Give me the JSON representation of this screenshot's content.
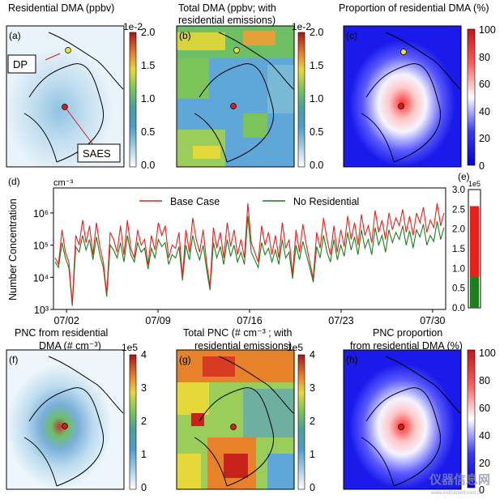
{
  "panels": {
    "a": {
      "letter": "(a)",
      "title": "Residential DMA (ppbv)",
      "cb_exp": "1e-2",
      "cb_ticks": [
        "2.0",
        "1.5",
        "1.0",
        "0.5",
        "0.0"
      ],
      "callout_dp": "DP",
      "callout_saes": "SAES"
    },
    "b": {
      "letter": "(b)",
      "title1": "Total DMA (ppbv; with",
      "title2": "residential emissions)",
      "cb_exp": "1e-2",
      "cb_ticks": [
        "2.0",
        "1.5",
        "1.0",
        "0.5",
        "0.0"
      ]
    },
    "c": {
      "letter": "(c)",
      "title": "Proportion of residential DMA (%)",
      "cb_ticks": [
        "100",
        "80",
        "60",
        "40",
        "20",
        "0"
      ]
    },
    "f": {
      "letter": "(f)",
      "title1": "PNC from residential",
      "title2": "DMA (# cm⁻³)",
      "cb_exp": "1e5",
      "cb_ticks": [
        "4",
        "3",
        "2",
        "1",
        "0"
      ]
    },
    "g": {
      "letter": "(g)",
      "title1": "Total PNC (# cm⁻³ ; with",
      "title2": "residential emissions)",
      "cb_exp": "1e5",
      "cb_ticks": [
        "4",
        "3",
        "2",
        "1",
        "0"
      ]
    },
    "h": {
      "letter": "(h)",
      "title1": "PNC proportion",
      "title2": "from residential DMA (%)",
      "cb_ticks": [
        "100",
        "80",
        "60",
        "40",
        "20",
        "0"
      ]
    }
  },
  "watermark": {
    "text": "仪器信息网",
    "sub": "www.instrument.com.cn"
  },
  "colors": {
    "base": "#e8201c",
    "noresid": "#1c7f1c",
    "proportion_high": "#d8141a",
    "proportion_low": "#0000dc"
  },
  "chart_data": [
    {
      "type": "line",
      "panel": "(d)",
      "unit": "cm⁻³",
      "ylabel": "Number Concentration",
      "y_scale": "log",
      "ylim": [
        1000,
        6000000
      ],
      "y_ticks": [
        "10⁶",
        "10⁵",
        "10⁴",
        "10³"
      ],
      "x_ticks": [
        "07/02",
        "07/09",
        "07/16",
        "07/23",
        "07/30"
      ],
      "x_range": [
        "07/01",
        "07/31"
      ],
      "legend_position": "top-center",
      "series": [
        {
          "name": "Base Case",
          "color": "#e8201c",
          "values": [
            40000,
            25000,
            300000,
            60000,
            30000,
            1500,
            200000,
            100000,
            600000,
            120000,
            400000,
            50000,
            500000,
            90000,
            30000,
            3000,
            250000,
            150000,
            60000,
            400000,
            50000,
            600000,
            80000,
            40000,
            300000,
            100000,
            150000,
            25000,
            200000,
            70000,
            500000,
            200000,
            400000,
            40000,
            100000,
            80000,
            250000,
            10000,
            300000,
            60000,
            700000,
            150000,
            60000,
            300000,
            30000,
            5000,
            350000,
            80000,
            250000,
            40000,
            500000,
            90000,
            300000,
            50000,
            150000,
            40000,
            2000000,
            120000,
            60000,
            30000,
            400000,
            100000,
            250000,
            50000,
            200000,
            40000,
            500000,
            80000,
            150000,
            12000,
            300000,
            60000,
            450000,
            100000,
            30000,
            9000,
            250000,
            80000,
            700000,
            150000,
            50000,
            400000,
            60000,
            300000,
            90000,
            800000,
            150000,
            500000,
            100000,
            900000,
            200000,
            400000,
            120000,
            1200000,
            250000,
            600000,
            150000,
            1000000,
            300000,
            700000,
            400000,
            1300000,
            250000,
            800000,
            200000,
            1000000,
            500000,
            1500000,
            250000,
            600000,
            350000,
            2000000,
            400000,
            1000000
          ]
        },
        {
          "name": "No Residential",
          "color": "#1c7f1c",
          "values": [
            30000,
            20000,
            120000,
            40000,
            20000,
            1300,
            90000,
            60000,
            200000,
            70000,
            150000,
            35000,
            180000,
            50000,
            20000,
            2500,
            100000,
            70000,
            40000,
            120000,
            30000,
            200000,
            50000,
            30000,
            120000,
            60000,
            80000,
            18000,
            80000,
            40000,
            150000,
            90000,
            120000,
            25000,
            50000,
            40000,
            90000,
            8000,
            100000,
            35000,
            200000,
            70000,
            35000,
            100000,
            18000,
            4000,
            120000,
            40000,
            90000,
            25000,
            150000,
            45000,
            100000,
            30000,
            60000,
            25000,
            800000,
            60000,
            35000,
            20000,
            120000,
            50000,
            80000,
            30000,
            70000,
            25000,
            150000,
            40000,
            60000,
            9000,
            100000,
            35000,
            130000,
            50000,
            20000,
            7000,
            90000,
            40000,
            200000,
            60000,
            30000,
            150000,
            35000,
            100000,
            45000,
            250000,
            70000,
            180000,
            50000,
            300000,
            80000,
            150000,
            50000,
            350000,
            100000,
            200000,
            60000,
            300000,
            120000,
            250000,
            150000,
            400000,
            100000,
            280000,
            80000,
            300000,
            180000,
            450000,
            100000,
            200000,
            130000,
            550000,
            150000,
            350000
          ]
        }
      ]
    },
    {
      "type": "bar",
      "panel": "(e)",
      "exponent": "1e5",
      "ylim": [
        0,
        3.0
      ],
      "y_ticks": [
        "3.0",
        "2.5",
        "2.0",
        "1.5",
        "1.0",
        "0.5",
        "0.0"
      ],
      "series": [
        {
          "name": "No Residential",
          "color": "#1c7f1c",
          "value": 0.78
        },
        {
          "name": "Base Case",
          "color": "#e8201c",
          "value": 2.58
        }
      ]
    }
  ]
}
